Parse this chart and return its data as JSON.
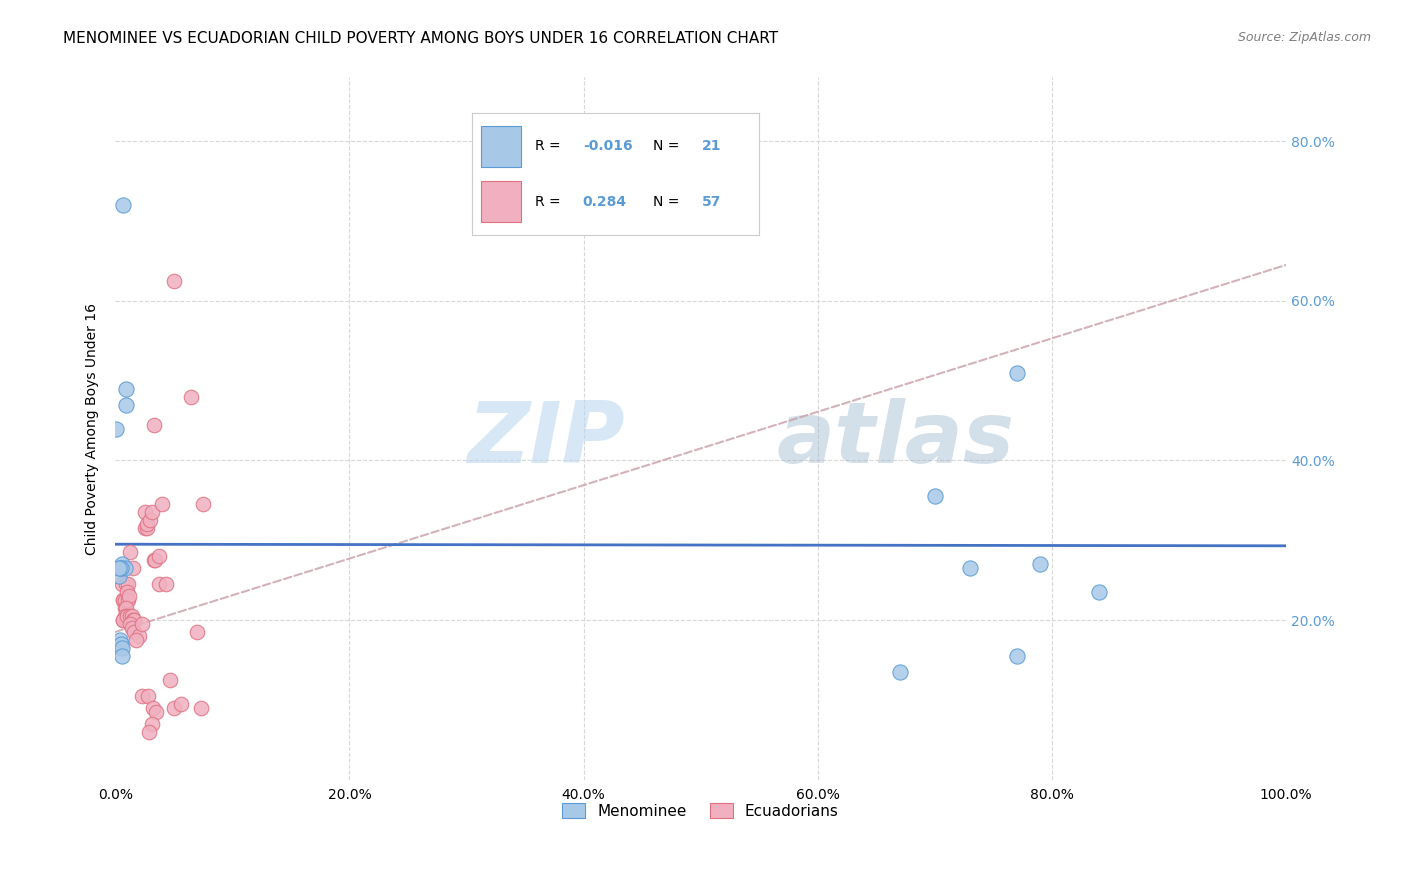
{
  "title": "MENOMINEE VS ECUADORIAN CHILD POVERTY AMONG BOYS UNDER 16 CORRELATION CHART",
  "source": "Source: ZipAtlas.com",
  "ylabel": "Child Poverty Among Boys Under 16",
  "watermark_zip": "ZIP",
  "watermark_atlas": "atlas",
  "xlim": [
    0.0,
    1.0
  ],
  "ylim": [
    0.0,
    0.88
  ],
  "xticks": [
    0.0,
    0.2,
    0.4,
    0.6,
    0.8,
    1.0
  ],
  "yticks": [
    0.2,
    0.4,
    0.6,
    0.8
  ],
  "xticklabels": [
    "0.0%",
    "20.0%",
    "40.0%",
    "60.0%",
    "80.0%",
    "100.0%"
  ],
  "yticklabels": [
    "20.0%",
    "40.0%",
    "60.0%",
    "80.0%"
  ],
  "menominee_color": "#a8c8e8",
  "ecuadorian_color": "#f0b0c0",
  "menominee_edge_color": "#5b9bd5",
  "ecuadorian_edge_color": "#e07080",
  "trendline_blue_color": "#4472c4",
  "trendline_pink_color": "#c0607070",
  "trendline_pink_solid": "#c06070",
  "grid_color": "#d8d8d8",
  "background_color": "#ffffff",
  "title_fontsize": 11,
  "axis_fontsize": 10,
  "tick_fontsize": 10,
  "menominee_x": [
    0.007,
    0.009,
    0.009,
    0.001,
    0.003,
    0.006,
    0.008,
    0.004,
    0.005,
    0.003,
    0.004,
    0.005,
    0.006,
    0.006,
    0.77,
    0.79,
    0.84,
    0.7,
    0.73,
    0.67,
    0.77
  ],
  "menominee_y": [
    0.72,
    0.49,
    0.47,
    0.44,
    0.255,
    0.27,
    0.265,
    0.265,
    0.265,
    0.265,
    0.175,
    0.17,
    0.165,
    0.155,
    0.51,
    0.27,
    0.235,
    0.355,
    0.265,
    0.135,
    0.155
  ],
  "ecuadorian_x": [
    0.006,
    0.01,
    0.05,
    0.013,
    0.015,
    0.009,
    0.011,
    0.007,
    0.007,
    0.008,
    0.008,
    0.01,
    0.011,
    0.012,
    0.009,
    0.008,
    0.007,
    0.009,
    0.01,
    0.007,
    0.01,
    0.013,
    0.014,
    0.015,
    0.016,
    0.013,
    0.014,
    0.016,
    0.02,
    0.018,
    0.023,
    0.025,
    0.025,
    0.027,
    0.027,
    0.03,
    0.031,
    0.033,
    0.034,
    0.037,
    0.037,
    0.043,
    0.047,
    0.05,
    0.056,
    0.023,
    0.028,
    0.032,
    0.035,
    0.031,
    0.029,
    0.07,
    0.073,
    0.065,
    0.04,
    0.075,
    0.033
  ],
  "ecuadorian_y": [
    0.245,
    0.225,
    0.625,
    0.285,
    0.265,
    0.245,
    0.245,
    0.225,
    0.225,
    0.215,
    0.225,
    0.235,
    0.225,
    0.23,
    0.215,
    0.205,
    0.2,
    0.2,
    0.2,
    0.2,
    0.205,
    0.205,
    0.205,
    0.2,
    0.2,
    0.195,
    0.19,
    0.185,
    0.18,
    0.175,
    0.195,
    0.335,
    0.315,
    0.315,
    0.32,
    0.325,
    0.335,
    0.275,
    0.275,
    0.28,
    0.245,
    0.245,
    0.125,
    0.09,
    0.095,
    0.105,
    0.105,
    0.09,
    0.085,
    0.07,
    0.06,
    0.185,
    0.09,
    0.48,
    0.345,
    0.345,
    0.445
  ],
  "blue_trendline_y0": 0.295,
  "blue_trendline_y1": 0.293,
  "pink_trendline_y0": 0.185,
  "pink_trendline_y1": 0.645
}
